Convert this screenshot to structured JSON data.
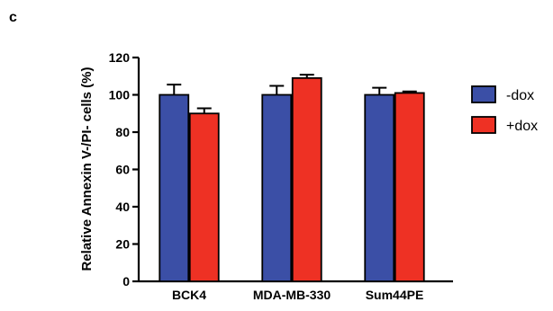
{
  "panel_label": "c",
  "chart_data": {
    "type": "bar",
    "categories": [
      "BCK4",
      "MDA-MB-330",
      "Sum44PE"
    ],
    "series": [
      {
        "name": "-dox",
        "color": "#3b4fa6",
        "values": [
          100,
          100,
          100
        ],
        "errors": [
          5.5,
          4.8,
          3.8
        ]
      },
      {
        "name": "+dox",
        "color": "#ee3124",
        "values": [
          90,
          109,
          101
        ],
        "errors": [
          2.8,
          1.8,
          0.8
        ]
      }
    ],
    "title": "",
    "xlabel": "",
    "ylabel": "Relative Annexin V-/PI- cells (%)",
    "ylim": [
      0,
      120
    ],
    "yticks": [
      0,
      20,
      40,
      60,
      80,
      100,
      120
    ],
    "grid": false,
    "legend_position": "right"
  }
}
